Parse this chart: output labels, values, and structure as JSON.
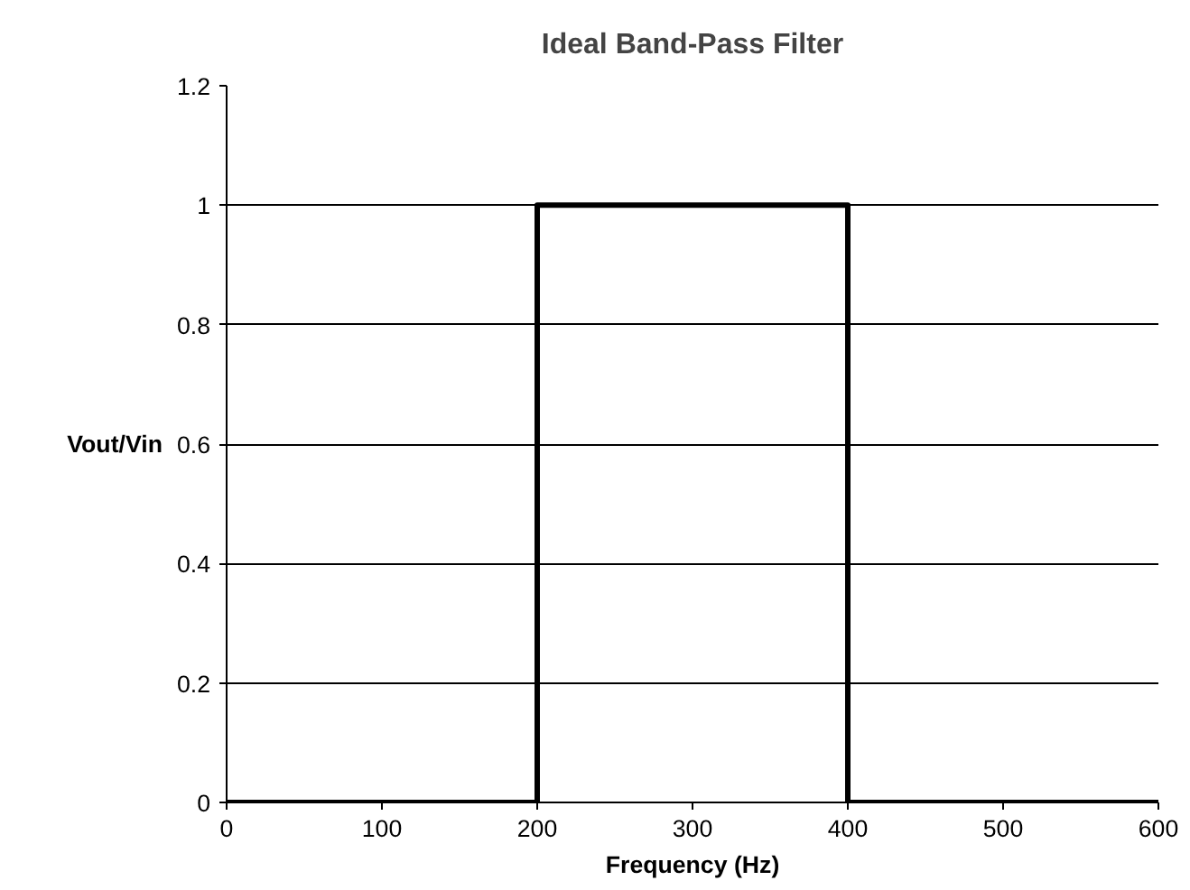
{
  "chart_data": {
    "type": "line",
    "title": "Ideal Band-Pass Filter",
    "xlabel": "Frequency (Hz)",
    "ylabel": "Vout/Vin",
    "x": [
      0,
      200,
      200,
      400,
      400,
      600
    ],
    "series": [
      {
        "color": "#000000",
        "values": [
          0,
          0,
          1,
          1,
          0,
          0
        ]
      }
    ],
    "xlim": [
      0,
      600
    ],
    "xticks": [
      0,
      100,
      200,
      300,
      400,
      500,
      600
    ],
    "ylim": [
      0,
      1.2
    ],
    "yticks": [
      0,
      0.2,
      0.4,
      0.6,
      0.8,
      1,
      1.2
    ],
    "grid": "y",
    "marker": "none",
    "line_style": "solid"
  }
}
